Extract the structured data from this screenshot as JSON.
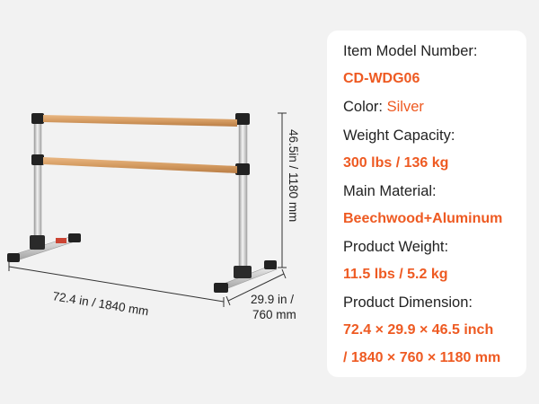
{
  "dimensions": {
    "width": "72.4 in / 1840 mm",
    "depth_line1": "29.9 in /",
    "depth_line2": "760 mm",
    "height": "46.5in / 1180 mm"
  },
  "specs": {
    "model_label": "Item Model Number:",
    "model_value": "CD-WDG06",
    "color_label": "Color: ",
    "color_value": "Silver",
    "capacity_label": "Weight Capacity:",
    "capacity_value": "300 lbs / 136 kg",
    "material_label": "Main Material:",
    "material_value": "Beechwood+Aluminum",
    "weight_label": "Product Weight:",
    "weight_value": "11.5 lbs / 5.2 kg",
    "dimension_label": "Product Dimension:",
    "dimension_value_line1": "72.4 × 29.9 × 46.5 inch",
    "dimension_value_line2": "/ 1840 × 760 × 1180 mm"
  },
  "colors": {
    "accent": "#ee5a22",
    "background": "#f2f2f2",
    "card": "#ffffff",
    "wood": "#d9a46c",
    "metal": "#d4d4d4"
  }
}
